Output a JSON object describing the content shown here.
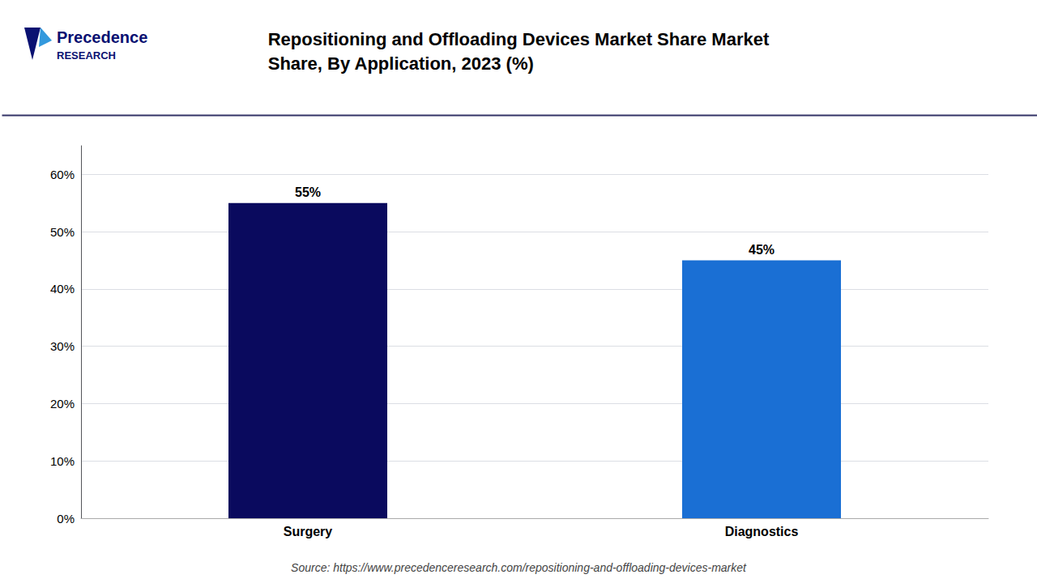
{
  "chart_data": {
    "type": "bar",
    "title": "Repositioning and Offloading Devices Market Share Market\nShare, By Application, 2023 (%)",
    "categories": [
      "Surgery",
      "Diagnostics"
    ],
    "values": [
      55,
      45
    ],
    "value_labels": [
      "55%",
      "45%"
    ],
    "data_labels": true,
    "colors": [
      "#0a0a5e",
      "#1a6fd4"
    ],
    "ylim": [
      0,
      65
    ],
    "yticks": [
      {
        "value": 0,
        "label": "0%"
      },
      {
        "value": 10,
        "label": "10%"
      },
      {
        "value": 20,
        "label": "20%"
      },
      {
        "value": 30,
        "label": "30%"
      },
      {
        "value": 40,
        "label": "40%"
      },
      {
        "value": 50,
        "label": "50%"
      },
      {
        "value": 60,
        "label": "60%"
      }
    ],
    "grid": true,
    "annotations": [
      "Source: https://www.precedenceresearch.com/repositioning-and-offloading-devices-market",
      "Precedence",
      "RESEARCH"
    ]
  }
}
